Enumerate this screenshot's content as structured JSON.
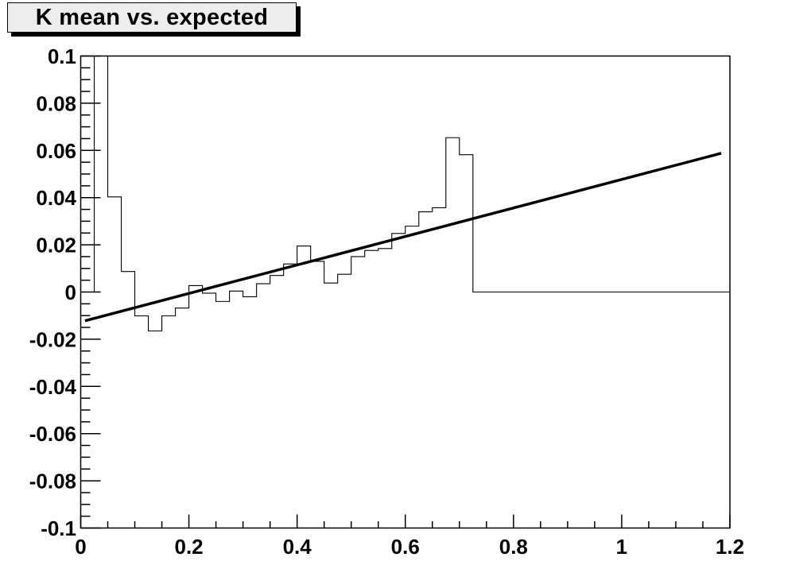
{
  "title_box": {
    "text": "K mean vs. expected"
  },
  "colors": {
    "background": "#ffffff",
    "frame_stroke": "#000000",
    "histogram_stroke": "#000000",
    "expected_line_stroke": "#000000",
    "title_background": "#ededed",
    "title_border": "#000000"
  },
  "chart_data": {
    "type": "line",
    "title": "K mean vs. expected",
    "xlabel": "",
    "ylabel": "",
    "xlim": [
      0,
      1.2
    ],
    "ylim": [
      -0.1,
      0.1
    ],
    "grid": false,
    "legend": null,
    "x_ticks": [
      {
        "value": 0.0,
        "label": "0"
      },
      {
        "value": 0.2,
        "label": "0.2"
      },
      {
        "value": 0.4,
        "label": "0.4"
      },
      {
        "value": 0.6,
        "label": "0.6"
      },
      {
        "value": 0.8,
        "label": "0.8"
      },
      {
        "value": 1.0,
        "label": "1"
      },
      {
        "value": 1.2,
        "label": "1.2"
      }
    ],
    "y_ticks": [
      {
        "value": 0.1,
        "label": "0.1"
      },
      {
        "value": 0.08,
        "label": "0.08"
      },
      {
        "value": 0.06,
        "label": "0.06"
      },
      {
        "value": 0.04,
        "label": "0.04"
      },
      {
        "value": 0.02,
        "label": "0.02"
      },
      {
        "value": 0.0,
        "label": "0"
      },
      {
        "value": -0.02,
        "label": "-0.02"
      },
      {
        "value": -0.04,
        "label": "-0.04"
      },
      {
        "value": -0.06,
        "label": "-0.06"
      },
      {
        "value": -0.08,
        "label": "-0.08"
      },
      {
        "value": -0.1,
        "label": "-0.1"
      }
    ],
    "x_minor_step": 0.05,
    "y_minor_step": 0.005,
    "series": [
      {
        "name": "K mean histogram",
        "type": "step",
        "bin_start": 0.0,
        "bin_width": 0.025,
        "note": "bin [0.025,0.05] exceeds the y-axis maximum and is clipped at the frame top",
        "values": [
          0,
          0.12,
          0.0403,
          0.0087,
          -0.0101,
          -0.0165,
          -0.0101,
          -0.0068,
          0.0027,
          -0.0005,
          -0.004,
          0.0004,
          -0.002,
          0.0035,
          0.007,
          0.0119,
          0.0195,
          0.013,
          0.0038,
          0.0075,
          0.015,
          0.0176,
          0.0184,
          0.0248,
          0.0279,
          0.034,
          0.0357,
          0.0654,
          0.0582,
          0,
          0,
          0,
          0,
          0,
          0,
          0,
          0,
          0,
          0,
          0,
          0,
          0,
          0,
          0,
          0,
          0,
          0,
          0
        ]
      },
      {
        "name": "expected straight line",
        "type": "line",
        "x": [
          0.008,
          1.184
        ],
        "y": [
          -0.0122,
          0.0588
        ]
      }
    ]
  }
}
